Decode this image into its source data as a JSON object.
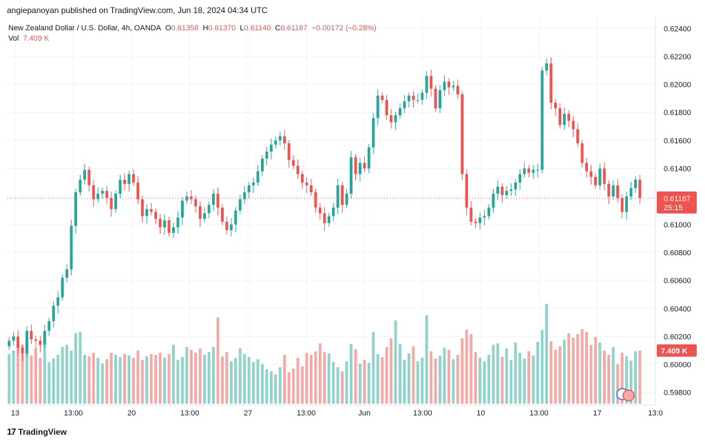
{
  "publisher": "angiepanoyan published on TradingView.com, Jun 18, 2024 04:34 UTC",
  "footer": {
    "logo_mark": "17",
    "brand": "TradingView"
  },
  "legend": {
    "symbol": "New Zealand Dollar / U.S. Dollar, 4h, OANDA",
    "o_label": "O",
    "o_value": "0.61358",
    "h_label": "H",
    "h_value": "0.61370",
    "l_label": "L",
    "l_value": "0.61140",
    "c_label": "C",
    "c_value": "0.61187",
    "change": "−0.00172 (−0.28%)",
    "vol_label": "Vol",
    "vol_value": "7.409 K"
  },
  "colors": {
    "up": "#26a69a",
    "down": "#ef5350",
    "up_vol": "#8fd3ca",
    "down_vol": "#f4a9a7",
    "grid": "#f0f3fa",
    "text": "#131722"
  },
  "chart_data": {
    "type": "candlestick",
    "title": "New Zealand Dollar / U.S. Dollar, 4h, OANDA",
    "ylim": [
      0.5972,
      0.6248
    ],
    "y_ticks": [
      "0.62400",
      "0.62200",
      "0.62000",
      "0.61800",
      "0.61600",
      "0.61400",
      "0.61200",
      "0.61000",
      "0.60800",
      "0.60600",
      "0.60400",
      "0.60200",
      "0.60000",
      "0.59800"
    ],
    "x_ticks": [
      "13",
      "13:00",
      "20",
      "13:00",
      "27",
      "13:00",
      "Jun",
      "13:00",
      "10",
      "13:00",
      "17",
      "13:0"
    ],
    "last_price": "0.61187",
    "countdown": "25:15",
    "last_volume": "7.409 K",
    "close": [
      0.6017,
      0.602,
      0.6012,
      0.6008,
      0.6024,
      0.6018,
      0.6017,
      0.6014,
      0.6024,
      0.6031,
      0.6042,
      0.6048,
      0.6062,
      0.6068,
      0.6099,
      0.6123,
      0.6132,
      0.6139,
      0.6128,
      0.6118,
      0.6122,
      0.6124,
      0.6119,
      0.6111,
      0.6122,
      0.6132,
      0.6129,
      0.6136,
      0.613,
      0.6118,
      0.6106,
      0.6111,
      0.6109,
      0.6104,
      0.6098,
      0.6103,
      0.6094,
      0.6098,
      0.6105,
      0.6117,
      0.612,
      0.6118,
      0.6113,
      0.6104,
      0.6108,
      0.6114,
      0.6122,
      0.6112,
      0.6102,
      0.6096,
      0.61,
      0.611,
      0.6118,
      0.6123,
      0.6128,
      0.613,
      0.6138,
      0.6147,
      0.6152,
      0.6157,
      0.616,
      0.6163,
      0.6158,
      0.6146,
      0.6142,
      0.6136,
      0.613,
      0.6128,
      0.6123,
      0.6112,
      0.6108,
      0.6101,
      0.6106,
      0.6112,
      0.6128,
      0.6114,
      0.6122,
      0.6148,
      0.6136,
      0.6144,
      0.614,
      0.6155,
      0.6176,
      0.6192,
      0.6189,
      0.6178,
      0.6173,
      0.6178,
      0.6183,
      0.6188,
      0.6192,
      0.6189,
      0.6189,
      0.6194,
      0.6206,
      0.6197,
      0.6183,
      0.6196,
      0.6202,
      0.6198,
      0.6199,
      0.6193,
      0.6136,
      0.6112,
      0.6102,
      0.6101,
      0.6105,
      0.6106,
      0.6112,
      0.6122,
      0.6127,
      0.6121,
      0.6124,
      0.6125,
      0.613,
      0.6136,
      0.614,
      0.6137,
      0.6139,
      0.6139,
      0.621,
      0.6215,
      0.6187,
      0.6183,
      0.6171,
      0.6179,
      0.6174,
      0.6168,
      0.6158,
      0.6144,
      0.6138,
      0.6134,
      0.6128,
      0.614,
      0.6129,
      0.612,
      0.6128,
      0.6119,
      0.6109,
      0.612,
      0.6126,
      0.6132,
      0.6119
    ],
    "volume_k": [
      6.9,
      7.4,
      7.8,
      8.1,
      7.2,
      6.7,
      7.8,
      6.4,
      8.1,
      5.8,
      6.3,
      6.8,
      7.9,
      8.2,
      7.4,
      9.8,
      10.0,
      6.8,
      6.6,
      7.1,
      6.4,
      5.6,
      6.2,
      7.1,
      6.8,
      6.5,
      6.9,
      6.7,
      6.4,
      7.4,
      6.1,
      6.6,
      6.9,
      6.8,
      7.1,
      6.4,
      6.9,
      8.2,
      6.1,
      6.5,
      7.9,
      7.5,
      7.1,
      7.7,
      6.8,
      7.2,
      7.9,
      12.0,
      6.6,
      7.2,
      5.9,
      6.4,
      7.7,
      6.9,
      6.5,
      5.8,
      6.2,
      5.5,
      4.8,
      4.5,
      4.1,
      5.1,
      6.8,
      4.4,
      4.9,
      6.4,
      5.2,
      7.1,
      6.8,
      7.3,
      8.4,
      7.2,
      7.0,
      5.8,
      5.1,
      4.5,
      5.9,
      8.3,
      7.6,
      5.6,
      6.1,
      5.7,
      10.0,
      6.9,
      6.5,
      7.9,
      9.1,
      11.6,
      8.3,
      6.1,
      7.0,
      8.0,
      5.9,
      6.4,
      12.3,
      7.3,
      6.3,
      6.7,
      7.8,
      7.5,
      6.2,
      6.8,
      9.1,
      10.3,
      9.7,
      7.2,
      6.4,
      5.9,
      6.8,
      8.2,
      8.4,
      6.5,
      7.7,
      6.1,
      8.5,
      7.1,
      6.3,
      7.3,
      6.7,
      8.6,
      10.3,
      13.9,
      8.7,
      7.5,
      8.0,
      8.9,
      9.8,
      9.2,
      9.7,
      10.4,
      10.0,
      8.2,
      9.3,
      8.5,
      7.4,
      6.8,
      7.9,
      5.5,
      7.1,
      6.6,
      6.0,
      7.3,
      7.4
    ]
  }
}
